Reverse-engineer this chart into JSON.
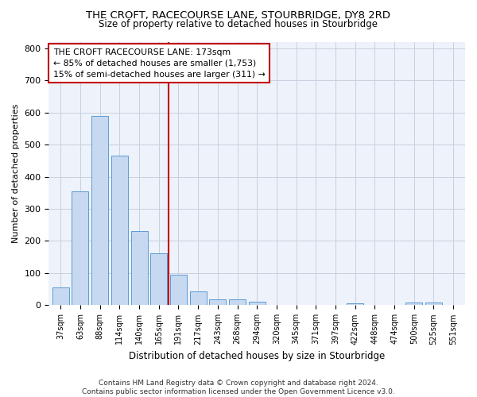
{
  "title_line1": "THE CROFT, RACECOURSE LANE, STOURBRIDGE, DY8 2RD",
  "title_line2": "Size of property relative to detached houses in Stourbridge",
  "xlabel": "Distribution of detached houses by size in Stourbridge",
  "ylabel": "Number of detached properties",
  "categories": [
    "37sqm",
    "63sqm",
    "88sqm",
    "114sqm",
    "140sqm",
    "165sqm",
    "191sqm",
    "217sqm",
    "243sqm",
    "268sqm",
    "294sqm",
    "320sqm",
    "345sqm",
    "371sqm",
    "397sqm",
    "422sqm",
    "448sqm",
    "474sqm",
    "500sqm",
    "525sqm",
    "551sqm"
  ],
  "values": [
    55,
    355,
    590,
    465,
    232,
    162,
    95,
    43,
    18,
    18,
    12,
    0,
    0,
    0,
    0,
    5,
    0,
    0,
    8,
    8,
    0
  ],
  "bar_color": "#c6d9f0",
  "bar_edge_color": "#5b9bd5",
  "vline_x_index": 6.0,
  "vline_color": "#c00000",
  "annotation_text": "THE CROFT RACECOURSE LANE: 173sqm\n← 85% of detached houses are smaller (1,753)\n15% of semi-detached houses are larger (311) →",
  "annotation_box_color": "white",
  "annotation_box_edge_color": "#c00000",
  "ylim": [
    0,
    820
  ],
  "yticks": [
    0,
    100,
    200,
    300,
    400,
    500,
    600,
    700,
    800
  ],
  "grid_color": "#c8cfe0",
  "bg_color": "#eef2fa",
  "footer_line1": "Contains HM Land Registry data © Crown copyright and database right 2024.",
  "footer_line2": "Contains public sector information licensed under the Open Government Licence v3.0."
}
